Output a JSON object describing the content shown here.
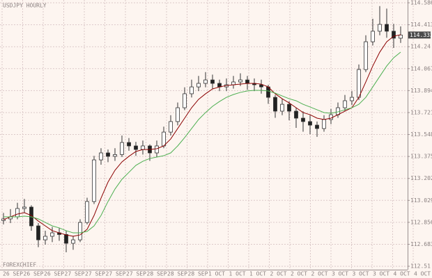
{
  "chart_data": {
    "type": "candlestick",
    "title": "USDJPY HOURLY",
    "watermark": "FOREXCHIEF",
    "open": [
      112.87,
      112.883,
      112.899,
      112.965,
      112.976,
      112.828,
      112.718,
      112.746,
      112.773,
      112.76,
      112.691,
      112.718,
      112.855,
      113.02,
      113.348,
      113.403,
      113.376,
      113.39,
      113.485,
      113.458,
      113.43,
      113.458,
      113.403,
      113.458,
      113.567,
      113.65,
      113.759,
      113.869,
      113.923,
      113.951,
      113.978,
      113.951,
      113.923,
      113.94,
      113.962,
      113.978,
      113.951,
      113.94,
      113.923,
      113.841,
      113.732,
      113.786,
      113.732,
      113.677,
      113.65,
      113.622,
      113.595,
      113.666,
      113.704,
      113.759,
      113.814,
      113.841,
      114.06,
      114.279,
      114.362,
      114.416,
      114.362,
      114.307
    ],
    "high": [
      112.93,
      112.96,
      113.01,
      113.04,
      112.99,
      112.85,
      112.79,
      112.82,
      112.81,
      112.79,
      112.75,
      112.88,
      113.05,
      113.38,
      113.44,
      113.43,
      113.44,
      113.54,
      113.52,
      113.49,
      113.5,
      113.47,
      113.5,
      113.61,
      113.7,
      113.8,
      113.92,
      113.98,
      114.01,
      114.04,
      114.02,
      113.98,
      113.99,
      114.01,
      114.03,
      114.01,
      113.99,
      113.98,
      113.94,
      113.86,
      113.83,
      113.81,
      113.76,
      113.73,
      113.7,
      113.65,
      113.7,
      113.75,
      113.8,
      113.86,
      113.89,
      114.1,
      114.33,
      114.46,
      114.56,
      114.54,
      114.42,
      114.4
    ],
    "low": [
      112.84,
      112.85,
      112.88,
      112.93,
      112.79,
      112.66,
      112.68,
      112.7,
      112.71,
      112.62,
      112.64,
      112.7,
      112.84,
      113.0,
      113.31,
      113.33,
      113.34,
      113.37,
      113.42,
      113.38,
      113.39,
      113.34,
      113.37,
      113.44,
      113.54,
      113.62,
      113.74,
      113.84,
      113.89,
      113.92,
      113.91,
      113.89,
      113.89,
      113.91,
      113.93,
      113.9,
      113.89,
      113.87,
      113.79,
      113.68,
      113.7,
      113.66,
      113.6,
      113.57,
      113.55,
      113.53,
      113.57,
      113.63,
      113.68,
      113.73,
      113.78,
      113.82,
      114.04,
      114.25,
      114.33,
      114.31,
      114.23,
      114.27
    ],
    "close": [
      112.883,
      112.899,
      112.965,
      112.976,
      112.828,
      112.718,
      112.746,
      112.773,
      112.76,
      112.691,
      112.718,
      112.855,
      113.02,
      113.348,
      113.403,
      113.376,
      113.39,
      113.485,
      113.458,
      113.43,
      113.458,
      113.403,
      113.458,
      113.567,
      113.65,
      113.759,
      113.869,
      113.923,
      113.951,
      113.978,
      113.951,
      113.923,
      113.94,
      113.962,
      113.978,
      113.951,
      113.94,
      113.923,
      113.841,
      113.732,
      113.786,
      113.732,
      113.677,
      113.65,
      113.622,
      113.595,
      113.666,
      113.704,
      113.759,
      113.814,
      113.841,
      114.06,
      114.279,
      114.362,
      114.416,
      114.362,
      114.307,
      114.332
    ],
    "up_color": "#ffffff",
    "down_color": "#222222",
    "series": [
      {
        "color": "#8b0000",
        "values": [
          112.877,
          112.899,
          112.921,
          112.932,
          112.91,
          112.866,
          112.828,
          112.79,
          112.773,
          112.757,
          112.746,
          112.757,
          112.801,
          112.91,
          113.047,
          113.173,
          113.266,
          113.332,
          113.376,
          113.414,
          113.43,
          113.43,
          113.436,
          113.458,
          113.513,
          113.595,
          113.677,
          113.759,
          113.825,
          113.869,
          113.907,
          113.923,
          113.934,
          113.94,
          113.945,
          113.951,
          113.951,
          113.945,
          113.923,
          113.869,
          113.83,
          113.797,
          113.759,
          113.721,
          113.704,
          113.677,
          113.666,
          113.677,
          113.704,
          113.732,
          113.759,
          113.841,
          113.962,
          114.088,
          114.197,
          114.279,
          114.323,
          114.334
        ]
      },
      {
        "color": "#4caf50",
        "values": [
          112.899,
          112.899,
          112.899,
          112.905,
          112.899,
          112.883,
          112.855,
          112.828,
          112.812,
          112.79,
          112.773,
          112.773,
          112.784,
          112.828,
          112.91,
          113.02,
          113.118,
          113.195,
          113.25,
          113.305,
          113.337,
          113.359,
          113.37,
          113.381,
          113.403,
          113.458,
          113.524,
          113.595,
          113.666,
          113.721,
          113.77,
          113.808,
          113.841,
          113.863,
          113.88,
          113.891,
          113.896,
          113.896,
          113.891,
          113.874,
          113.852,
          113.83,
          113.814,
          113.786,
          113.765,
          113.743,
          113.721,
          113.715,
          113.726,
          113.743,
          113.759,
          113.786,
          113.841,
          113.923,
          114.006,
          114.088,
          114.153,
          114.197
        ]
      }
    ],
    "ylim": [
      112.483,
      114.608
    ],
    "yticks": [
      112.51,
      112.683,
      112.856,
      113.029,
      113.202,
      113.375,
      113.548,
      113.721,
      113.894,
      114.067,
      114.24,
      114.413,
      114.586
    ],
    "x_labels": [
      "26 SEP",
      "26 SEP",
      "26 SEP",
      "27 SEP",
      "27 SEP",
      "27 SEP",
      "27 SEP",
      "28 SEP",
      "28 SEP",
      "28 SEP",
      "1 OCT",
      "1 OCT",
      "1 OCT",
      "2 OCT",
      "2 OCT",
      "2 OCT",
      "3 OCT",
      "3 OCT",
      "3 OCT",
      "4 OCT",
      "4 OCT"
    ],
    "grid": true,
    "last_price": 114.332
  }
}
